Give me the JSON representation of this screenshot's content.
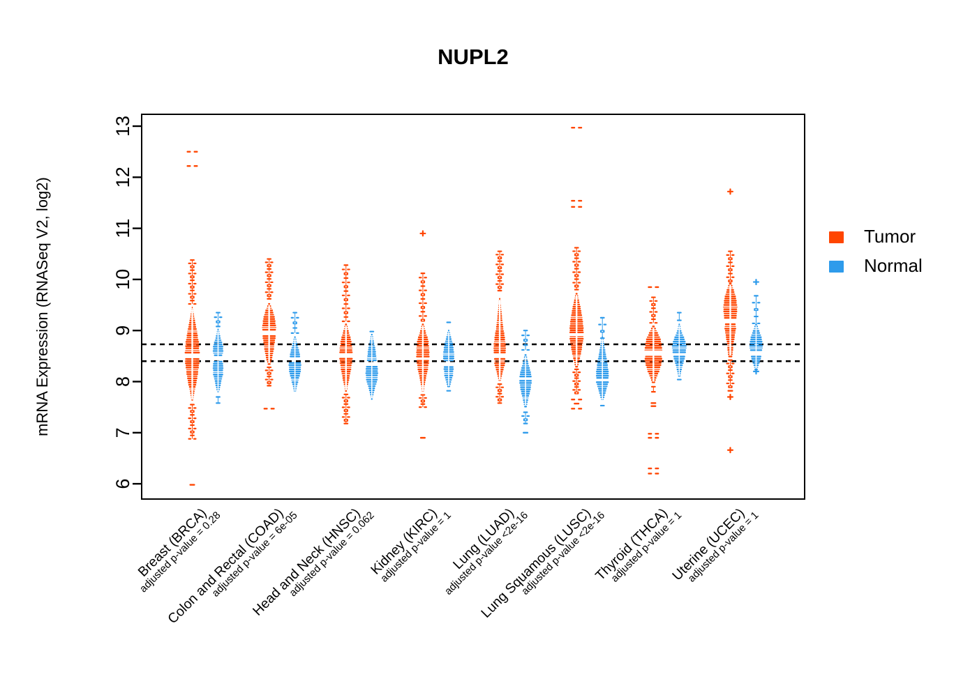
{
  "title": "NUPL2",
  "legend": {
    "items": [
      {
        "label": "Tumor",
        "color": "#FF4500"
      },
      {
        "label": "Normal",
        "color": "#2E9BEB"
      }
    ]
  },
  "chart_data": {
    "type": "beeswarm-violin",
    "title": "NUPL2",
    "ylabel": "mRNA Expression (RNASeq V2, log2)",
    "ylim": [
      5.7,
      13.25
    ],
    "yticks": [
      6,
      7,
      8,
      9,
      10,
      11,
      12,
      13
    ],
    "grid": false,
    "legend_position": "right",
    "reference_lines": [
      8.73,
      8.4
    ],
    "series_colors": {
      "tumor": "#FF4500",
      "normal": "#2E9BEB"
    },
    "groups": [
      {
        "id": "brca",
        "label": "Breast (BRCA)",
        "pvalue_label": "adjusted p-value = 0.28",
        "tumor": {
          "median": 8.5,
          "profile": [
            [
              9.45,
              0.05
            ],
            [
              9.2,
              0.27
            ],
            [
              9.0,
              0.47
            ],
            [
              8.75,
              0.67
            ],
            [
              8.55,
              0.73
            ],
            [
              8.42,
              0.73
            ],
            [
              8.2,
              0.6
            ],
            [
              8.0,
              0.45
            ],
            [
              7.82,
              0.25
            ],
            [
              7.62,
              0.07
            ]
          ],
          "stem_up": [
            10.38,
            9.52,
            14
          ],
          "stem_down": [
            7.55,
            6.88,
            11
          ],
          "outliers": [
            [
              12.5,
              "pair"
            ],
            [
              12.22,
              "pair"
            ],
            [
              5.98,
              "dash"
            ]
          ]
        },
        "normal": {
          "median": 8.44,
          "profile": [
            [
              9.02,
              0.07
            ],
            [
              8.85,
              0.27
            ],
            [
              8.7,
              0.5
            ],
            [
              8.6,
              0.53
            ],
            [
              8.5,
              0.4
            ],
            [
              8.4,
              0.43
            ],
            [
              8.3,
              0.53
            ],
            [
              8.15,
              0.5
            ],
            [
              8.0,
              0.33
            ],
            [
              7.88,
              0.2
            ],
            [
              7.78,
              0.08
            ]
          ],
          "stem_up": [
            9.35,
            9.08,
            4
          ],
          "stem_down": [
            7.7,
            7.58,
            2
          ],
          "outliers": []
        }
      },
      {
        "id": "coad",
        "label": "Colon and Rectal (COAD)",
        "pvalue_label": "adjusted p-value = 6e-05",
        "tumor": {
          "median": 8.97,
          "profile": [
            [
              9.52,
              0.1
            ],
            [
              9.38,
              0.4
            ],
            [
              9.22,
              0.6
            ],
            [
              9.07,
              0.7
            ],
            [
              8.92,
              0.67
            ],
            [
              8.77,
              0.57
            ],
            [
              8.6,
              0.45
            ],
            [
              8.45,
              0.3
            ],
            [
              8.33,
              0.12
            ]
          ],
          "stem_up": [
            10.4,
            9.62,
            13
          ],
          "stem_down": [
            8.28,
            7.92,
            7
          ],
          "outliers": [
            [
              7.47,
              "pair"
            ]
          ]
        },
        "normal": {
          "median": 8.42,
          "profile": [
            [
              8.87,
              0.08
            ],
            [
              8.72,
              0.27
            ],
            [
              8.56,
              0.47
            ],
            [
              8.42,
              0.6
            ],
            [
              8.3,
              0.63
            ],
            [
              8.15,
              0.53
            ],
            [
              8.0,
              0.33
            ],
            [
              7.9,
              0.2
            ],
            [
              7.78,
              0.08
            ]
          ],
          "stem_up": [
            9.35,
            8.95,
            5
          ],
          "stem_down": null,
          "outliers": []
        }
      },
      {
        "id": "hnsc",
        "label": "Head and Neck (HNSC)",
        "pvalue_label": "adjusted p-value = 0.062",
        "tumor": {
          "median": 8.5,
          "profile": [
            [
              9.12,
              0.1
            ],
            [
              8.95,
              0.33
            ],
            [
              8.8,
              0.53
            ],
            [
              8.65,
              0.63
            ],
            [
              8.5,
              0.67
            ],
            [
              8.35,
              0.6
            ],
            [
              8.2,
              0.47
            ],
            [
              8.05,
              0.33
            ],
            [
              7.93,
              0.2
            ],
            [
              7.8,
              0.08
            ]
          ],
          "stem_up": [
            10.28,
            9.18,
            14
          ],
          "stem_down": [
            7.75,
            7.18,
            10
          ],
          "outliers": []
        },
        "normal": {
          "median": 8.34,
          "profile": [
            [
              8.92,
              0.08
            ],
            [
              8.75,
              0.25
            ],
            [
              8.6,
              0.4
            ],
            [
              8.45,
              0.47
            ],
            [
              8.3,
              0.57
            ],
            [
              8.15,
              0.63
            ],
            [
              8.0,
              0.53
            ],
            [
              7.88,
              0.33
            ],
            [
              7.75,
              0.17
            ],
            [
              7.65,
              0.07
            ]
          ],
          "stem_up": [
            8.98,
            8.98,
            1
          ],
          "stem_down": null,
          "outliers": []
        }
      },
      {
        "id": "kirc",
        "label": "Kidney (KIRC)",
        "pvalue_label": "adjusted p-value = 1",
        "tumor": {
          "median": 8.45,
          "profile": [
            [
              9.12,
              0.1
            ],
            [
              8.95,
              0.33
            ],
            [
              8.8,
              0.57
            ],
            [
              8.65,
              0.63
            ],
            [
              8.5,
              0.67
            ],
            [
              8.35,
              0.6
            ],
            [
              8.2,
              0.47
            ],
            [
              8.05,
              0.3
            ],
            [
              7.9,
              0.17
            ],
            [
              7.78,
              0.07
            ]
          ],
          "stem_up": [
            10.12,
            9.2,
            12
          ],
          "stem_down": [
            7.74,
            7.5,
            5
          ],
          "outliers": [
            [
              10.9,
              "plus"
            ],
            [
              6.9,
              "dash"
            ]
          ]
        },
        "normal": {
          "median": 8.36,
          "profile": [
            [
              9.0,
              0.07
            ],
            [
              8.88,
              0.23
            ],
            [
              8.73,
              0.43
            ],
            [
              8.6,
              0.53
            ],
            [
              8.48,
              0.57
            ],
            [
              8.36,
              0.47
            ],
            [
              8.25,
              0.5
            ],
            [
              8.12,
              0.43
            ],
            [
              8.0,
              0.27
            ],
            [
              7.88,
              0.1
            ]
          ],
          "stem_up": [
            9.16,
            9.16,
            1
          ],
          "stem_down": [
            7.82,
            7.82,
            1
          ],
          "outliers": []
        }
      },
      {
        "id": "luad",
        "label": "Lung (LUAD)",
        "pvalue_label": "adjusted p-value <2e-16",
        "tumor": {
          "median": 8.52,
          "profile": [
            [
              9.62,
              0.07
            ],
            [
              9.4,
              0.17
            ],
            [
              9.2,
              0.27
            ],
            [
              9.0,
              0.4
            ],
            [
              8.85,
              0.53
            ],
            [
              8.72,
              0.6
            ],
            [
              8.6,
              0.63
            ],
            [
              8.5,
              0.53
            ],
            [
              8.38,
              0.57
            ],
            [
              8.25,
              0.4
            ],
            [
              8.1,
              0.2
            ],
            [
              8.0,
              0.1
            ]
          ],
          "stem_up": [
            10.55,
            9.78,
            13
          ],
          "stem_down": [
            7.95,
            7.58,
            7
          ],
          "outliers": []
        },
        "normal": {
          "median": 8.06,
          "profile": [
            [
              8.52,
              0.1
            ],
            [
              8.38,
              0.27
            ],
            [
              8.25,
              0.43
            ],
            [
              8.13,
              0.6
            ],
            [
              8.0,
              0.63
            ],
            [
              7.88,
              0.53
            ],
            [
              7.75,
              0.4
            ],
            [
              7.62,
              0.23
            ],
            [
              7.5,
              0.13
            ]
          ],
          "stem_up": [
            9.0,
            8.62,
            5
          ],
          "stem_down": [
            7.4,
            7.18,
            4
          ],
          "outliers": [
            [
              7.0,
              "dash"
            ]
          ]
        }
      },
      {
        "id": "lusc",
        "label": "Lung Squamous (LUSC)",
        "pvalue_label": "adjusted p-value <2e-16",
        "tumor": {
          "median": 8.92,
          "profile": [
            [
              9.72,
              0.1
            ],
            [
              9.52,
              0.33
            ],
            [
              9.32,
              0.53
            ],
            [
              9.12,
              0.67
            ],
            [
              8.95,
              0.7
            ],
            [
              8.8,
              0.67
            ],
            [
              8.65,
              0.53
            ],
            [
              8.5,
              0.4
            ],
            [
              8.4,
              0.27
            ],
            [
              8.28,
              0.13
            ]
          ],
          "stem_up": [
            10.62,
            9.8,
            13
          ],
          "stem_down": [
            8.24,
            7.78,
            9
          ],
          "outliers": [
            [
              12.97,
              "pair"
            ],
            [
              11.54,
              "pair"
            ],
            [
              11.42,
              "pair"
            ],
            [
              7.65,
              "pair"
            ],
            [
              7.57,
              "dash"
            ],
            [
              7.47,
              "pair"
            ]
          ]
        },
        "normal": {
          "median": 8.03,
          "profile": [
            [
              8.87,
              0.07
            ],
            [
              8.72,
              0.2
            ],
            [
              8.56,
              0.33
            ],
            [
              8.42,
              0.47
            ],
            [
              8.28,
              0.57
            ],
            [
              8.15,
              0.63
            ],
            [
              8.0,
              0.63
            ],
            [
              7.88,
              0.47
            ],
            [
              7.75,
              0.27
            ],
            [
              7.62,
              0.1
            ]
          ],
          "stem_up": [
            9.25,
            8.85,
            4
          ],
          "stem_down": [
            7.53,
            7.53,
            1
          ],
          "outliers": []
        }
      },
      {
        "id": "thca",
        "label": "Thyroid (THCA)",
        "pvalue_label": "adjusted p-value = 1",
        "tumor": {
          "median": 8.57,
          "profile": [
            [
              9.08,
              0.13
            ],
            [
              8.97,
              0.4
            ],
            [
              8.86,
              0.67
            ],
            [
              8.75,
              0.8
            ],
            [
              8.65,
              0.87
            ],
            [
              8.55,
              0.83
            ],
            [
              8.45,
              0.87
            ],
            [
              8.35,
              0.8
            ],
            [
              8.25,
              0.67
            ],
            [
              8.15,
              0.47
            ],
            [
              8.05,
              0.27
            ],
            [
              7.97,
              0.13
            ]
          ],
          "stem_up": [
            9.65,
            9.15,
            8
          ],
          "stem_down": [
            7.9,
            7.8,
            2
          ],
          "outliers": [
            [
              9.85,
              "pair"
            ],
            [
              7.58,
              "dash"
            ],
            [
              7.52,
              "dash"
            ],
            [
              6.98,
              "pair"
            ],
            [
              6.9,
              "pair"
            ],
            [
              6.3,
              "pair"
            ],
            [
              6.2,
              "pair"
            ]
          ]
        },
        "normal": {
          "median": 8.53,
          "profile": [
            [
              9.12,
              0.07
            ],
            [
              9.0,
              0.2
            ],
            [
              8.9,
              0.4
            ],
            [
              8.8,
              0.6
            ],
            [
              8.7,
              0.73
            ],
            [
              8.6,
              0.67
            ],
            [
              8.5,
              0.6
            ],
            [
              8.4,
              0.47
            ],
            [
              8.3,
              0.33
            ],
            [
              8.2,
              0.2
            ],
            [
              8.08,
              0.1
            ]
          ],
          "stem_up": [
            9.35,
            9.2,
            2
          ],
          "stem_down": [
            8.04,
            8.04,
            1
          ],
          "outliers": []
        }
      },
      {
        "id": "ucec",
        "label": "Uterine (UCEC)",
        "pvalue_label": "adjusted p-value = 1",
        "tumor": {
          "median": 9.17,
          "profile": [
            [
              9.92,
              0.13
            ],
            [
              9.77,
              0.4
            ],
            [
              9.62,
              0.6
            ],
            [
              9.47,
              0.7
            ],
            [
              9.32,
              0.67
            ],
            [
              9.18,
              0.53
            ],
            [
              9.05,
              0.57
            ],
            [
              8.9,
              0.47
            ],
            [
              8.75,
              0.33
            ],
            [
              8.6,
              0.27
            ],
            [
              8.48,
              0.2
            ]
          ],
          "stem_up": [
            10.55,
            9.97,
            9
          ],
          "stem_down": [
            8.42,
            7.9,
            9
          ],
          "outliers": [
            [
              11.72,
              "plus"
            ],
            [
              7.82,
              "dash"
            ],
            [
              7.7,
              "plus"
            ],
            [
              6.66,
              "plus"
            ]
          ]
        },
        "normal": {
          "median": 8.56,
          "profile": [
            [
              9.12,
              0.1
            ],
            [
              9.02,
              0.27
            ],
            [
              8.92,
              0.47
            ],
            [
              8.81,
              0.6
            ],
            [
              8.7,
              0.67
            ],
            [
              8.6,
              0.6
            ],
            [
              8.5,
              0.53
            ],
            [
              8.4,
              0.4
            ],
            [
              8.3,
              0.23
            ],
            [
              8.21,
              0.13
            ]
          ],
          "stem_up": [
            9.68,
            9.14,
            5
          ],
          "stem_down": null,
          "outliers": [
            [
              9.95,
              "plus"
            ],
            [
              8.2,
              "plus"
            ]
          ]
        }
      }
    ]
  }
}
